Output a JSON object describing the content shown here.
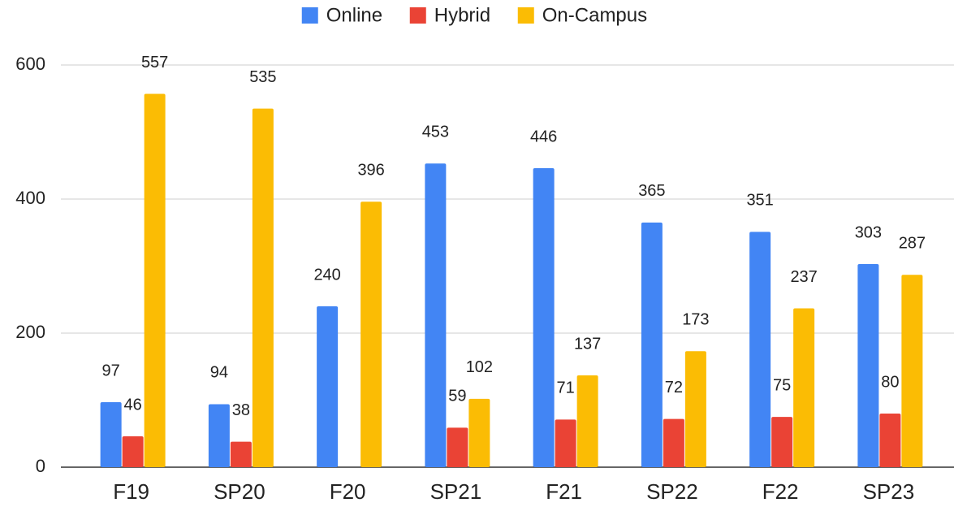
{
  "chart_data": {
    "type": "bar",
    "categories": [
      "F19",
      "SP20",
      "F20",
      "SP21",
      "F21",
      "SP22",
      "F22",
      "SP23"
    ],
    "series": [
      {
        "name": "Online",
        "color": "#4285f4",
        "values": [
          97,
          94,
          240,
          453,
          446,
          365,
          351,
          303
        ]
      },
      {
        "name": "Hybrid",
        "color": "#ea4335",
        "values": [
          46,
          38,
          null,
          59,
          71,
          72,
          75,
          80
        ]
      },
      {
        "name": "On-Campus",
        "color": "#fbbc04",
        "values": [
          557,
          535,
          396,
          102,
          137,
          173,
          237,
          287
        ]
      }
    ],
    "ylim": [
      0,
      600
    ],
    "yticks": [
      0,
      200,
      400,
      600
    ],
    "grid": true,
    "legend": "top"
  }
}
